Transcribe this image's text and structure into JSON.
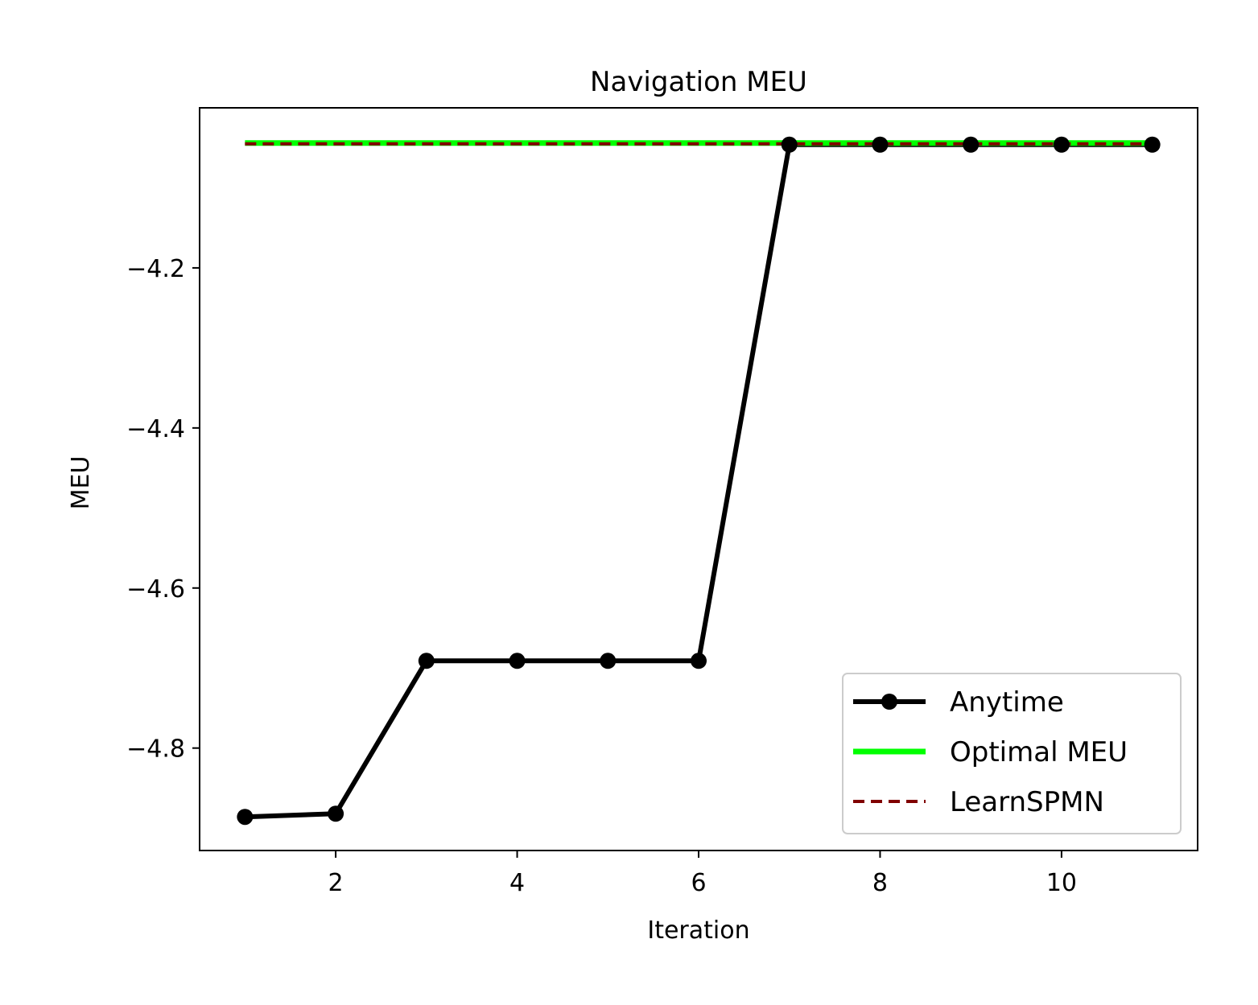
{
  "chart_data": {
    "type": "line",
    "title": "Navigation MEU",
    "xlabel": "Iteration",
    "ylabel": "MEU",
    "xlim": [
      0.5,
      11.5
    ],
    "ylim": [
      -4.928,
      -4.0
    ],
    "xticks": [
      2,
      4,
      6,
      8,
      10
    ],
    "xtick_labels": [
      "2",
      "4",
      "6",
      "8",
      "10"
    ],
    "yticks": [
      -4.2,
      -4.4,
      -4.6,
      -4.8
    ],
    "ytick_labels": [
      "−4.2",
      "−4.4",
      "−4.6",
      "−4.8"
    ],
    "grid": false,
    "legend_position": "lower-right",
    "series": [
      {
        "name": "Anytime",
        "style": "solid-with-circle-markers",
        "color": "#000000",
        "x": [
          1,
          2,
          3,
          4,
          5,
          6,
          7,
          8,
          9,
          10,
          11
        ],
        "y": [
          -4.886,
          -4.882,
          -4.691,
          -4.691,
          -4.691,
          -4.691,
          -4.046,
          -4.046,
          -4.046,
          -4.046,
          -4.046
        ]
      },
      {
        "name": "Optimal MEU",
        "style": "solid",
        "color": "#00ff00",
        "x": [
          1,
          11
        ],
        "y": [
          -4.044,
          -4.044
        ]
      },
      {
        "name": "LearnSPMN",
        "style": "dashed",
        "color": "#800000",
        "x": [
          1,
          11
        ],
        "y": [
          -4.045,
          -4.045
        ]
      }
    ]
  }
}
